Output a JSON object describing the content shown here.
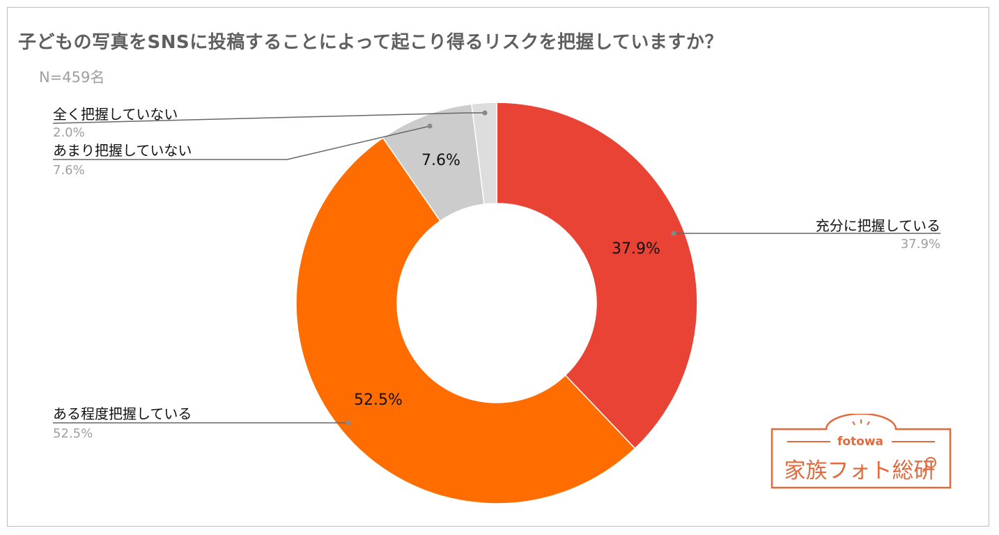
{
  "chart_data": {
    "type": "pie",
    "variant": "donut",
    "title": "子どもの写真をSNSに投稿することによって起こり得るリスクを把握していますか？",
    "subtitle": "N=459名",
    "categories": [
      "充分に把握している",
      "ある程度把握している",
      "あまり把握していない",
      "全く把握していない"
    ],
    "values": [
      37.9,
      52.5,
      7.6,
      2.0
    ],
    "value_labels": [
      "37.9%",
      "52.5%",
      "7.6%",
      "2.0%"
    ],
    "colors": [
      "#e94335",
      "#ff6d00",
      "#cccccc",
      "#dddddd"
    ]
  },
  "logo": {
    "name": "fotowa",
    "text": "家族フォト総研"
  }
}
